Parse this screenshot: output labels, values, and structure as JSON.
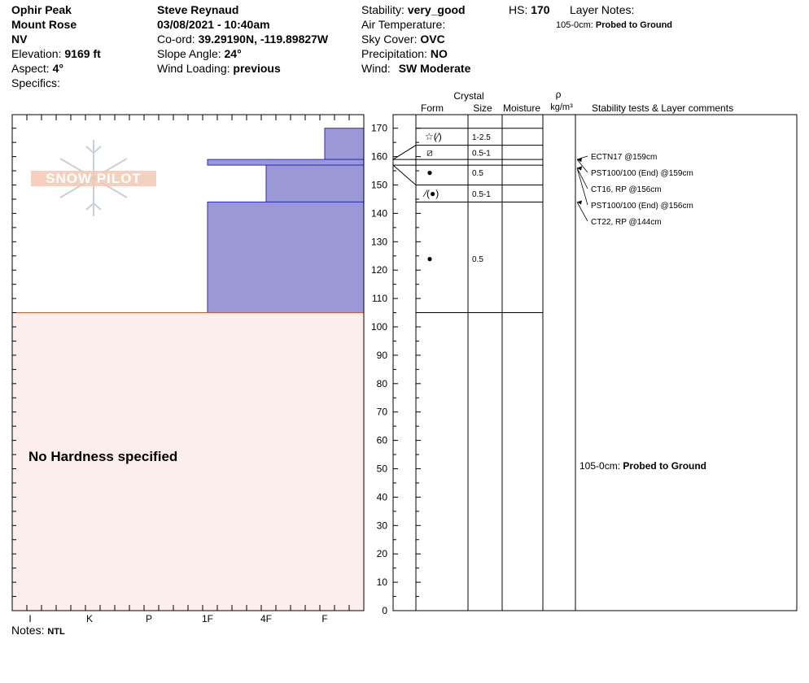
{
  "site": {
    "location": "Ophir Peak",
    "range": "Mount Rose",
    "state": "NV",
    "elevation_label": "Elevation:",
    "elevation": "9169 ft",
    "aspect_label": "Aspect:",
    "aspect": "4°",
    "specifics_label": "Specifics:"
  },
  "observer": {
    "name": "Steve Reynaud",
    "datetime": "03/08/2021 - 10:40am",
    "coord_label": "Co-ord:",
    "coord": "39.29190N, -119.89827W",
    "slope_label": "Slope Angle:",
    "slope": "24°",
    "wind_loading_label": "Wind Loading:",
    "wind_loading": "previous"
  },
  "conditions": {
    "stability_label": "Stability:",
    "stability": "very_good",
    "air_temp_label": "Air Temperature:",
    "sky_label": "Sky Cover:",
    "sky": "OVC",
    "precip_label": "Precipitation:",
    "precip": "NO",
    "wind_label": "Wind:",
    "wind": "SW Moderate",
    "hs_label": "HS:",
    "hs": "170"
  },
  "layer_notes": {
    "label": "Layer Notes:",
    "entry_range": "105-0cm:",
    "entry_text": "Probed to Ground"
  },
  "notes": {
    "label": "Notes:",
    "text": "NTL"
  },
  "logo_text": "SNOW PILOT",
  "no_hardness_text": "No Hardness specified",
  "column_headers": {
    "crystal": "Crystal",
    "form": "Form",
    "size": "Size",
    "moisture": "Moisture",
    "rho": "ρ",
    "density_unit": "kg/m³",
    "stability_tests": "Stability tests & Layer comments"
  },
  "colors": {
    "hardness_fill": "#9a99d6",
    "hardness_stroke": "#2b2bbf",
    "no_hardness_fill": "#fdeeee",
    "no_hardness_line": "#c0603a"
  },
  "chart_data": {
    "type": "bar",
    "title": "",
    "ylabel": "",
    "ylim": [
      0,
      175
    ],
    "y_ticks": [
      0,
      10,
      20,
      30,
      40,
      50,
      60,
      70,
      80,
      90,
      100,
      110,
      120,
      130,
      140,
      150,
      160,
      170
    ],
    "hardness_scale": [
      "I",
      "K",
      "P",
      "1F",
      "4F",
      "F"
    ],
    "hardness_layers": [
      {
        "top": 170,
        "bottom": 159,
        "hardness": "F"
      },
      {
        "top": 159,
        "bottom": 157,
        "hardness": "1F"
      },
      {
        "top": 157,
        "bottom": 144,
        "hardness": "4F"
      },
      {
        "top": 144,
        "bottom": 105,
        "hardness": "1F"
      }
    ],
    "no_hardness_range": [
      0,
      105
    ],
    "layer_boundaries": [
      170,
      164,
      159,
      157,
      150,
      144,
      105
    ],
    "crystals": [
      {
        "layer_top": 170,
        "layer_bottom": 164,
        "form": "☆(⁄)",
        "size": "1-2.5"
      },
      {
        "layer_top": 164,
        "layer_bottom": 159,
        "form": "⧄",
        "size": "0.5-1"
      },
      {
        "layer_top": 159,
        "layer_bottom": 150,
        "form": "●",
        "size": "0.5"
      },
      {
        "layer_top": 150,
        "layer_bottom": 144,
        "form": "⁄(●)",
        "size": "0.5-1"
      },
      {
        "layer_top": 144,
        "layer_bottom": 105,
        "form": "●",
        "size": "0.5"
      }
    ],
    "stability_tests": [
      {
        "text": "ECTN17 @159cm",
        "depth": 159
      },
      {
        "text": "PST100/100 (End) @159cm",
        "depth": 159
      },
      {
        "text": "CT16, RP @156cm",
        "depth": 156
      },
      {
        "text": "PST100/100 (End) @156cm",
        "depth": 156
      },
      {
        "text": "CT22, RP @144cm",
        "depth": 144
      }
    ],
    "layer_comments": [
      {
        "range": "105-0cm:",
        "text": "Probed to Ground"
      }
    ]
  }
}
